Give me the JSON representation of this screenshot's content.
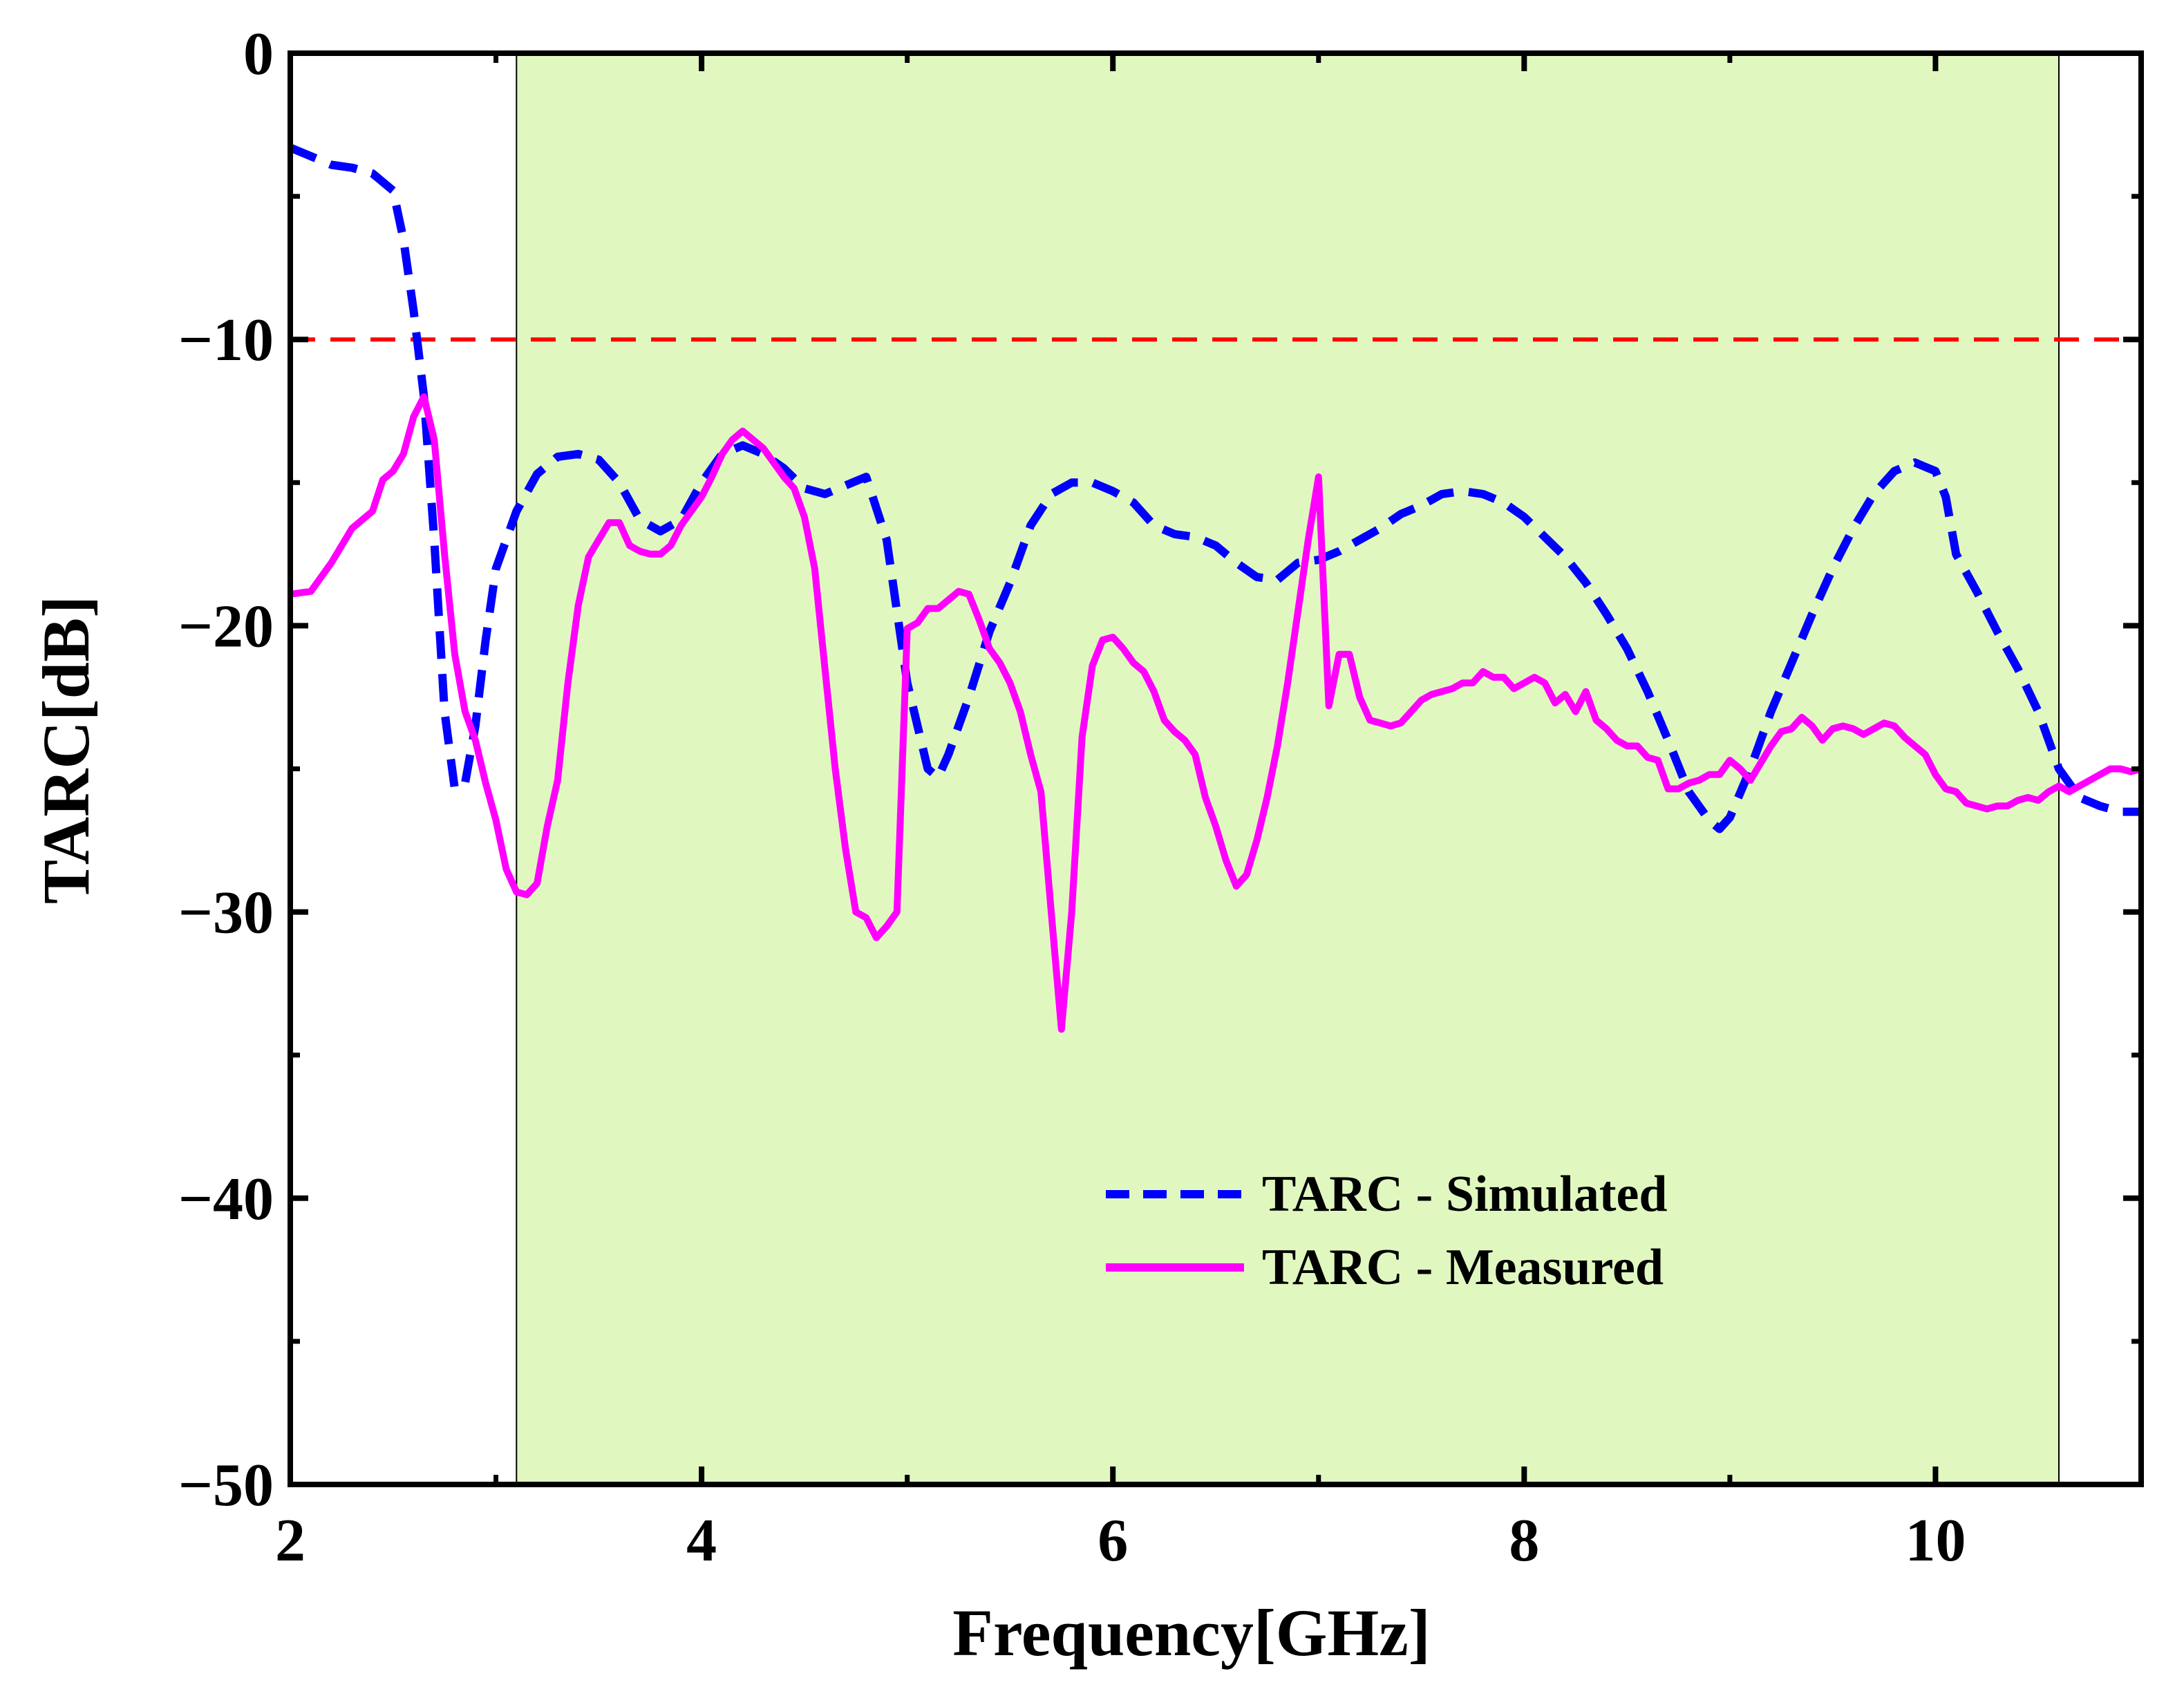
{
  "chart_data": {
    "type": "line",
    "title": "",
    "xlabel": "Frequency[GHz]",
    "ylabel": "TARC[dB]",
    "xlim": [
      2,
      11
    ],
    "ylim": [
      -50,
      0
    ],
    "x_ticks": [
      2,
      4,
      6,
      8,
      10
    ],
    "x_tick_labels": [
      "2",
      "4",
      "6",
      "8",
      "10"
    ],
    "y_ticks": [
      0,
      -10,
      -20,
      -30,
      -40,
      -50
    ],
    "y_tick_labels": [
      "0",
      "−10",
      "−20",
      "−30",
      "−40",
      "−50"
    ],
    "grid": false,
    "shaded_band": {
      "x_start": 3.1,
      "x_end": 10.6,
      "color": "#e0f8c0"
    },
    "reference_line": {
      "y": -10,
      "color": "#ff0000",
      "style": "dashed"
    },
    "legend_position": "lower-right",
    "series": [
      {
        "name": "TARC - Simulated",
        "color": "#0000ff",
        "style": "dashed",
        "x": [
          2.0,
          2.1,
          2.2,
          2.3,
          2.4,
          2.5,
          2.55,
          2.6,
          2.65,
          2.7,
          2.75,
          2.8,
          2.85,
          2.9,
          2.95,
          3.0,
          3.1,
          3.2,
          3.3,
          3.4,
          3.5,
          3.6,
          3.7,
          3.8,
          3.9,
          4.0,
          4.1,
          4.2,
          4.3,
          4.4,
          4.5,
          4.6,
          4.7,
          4.8,
          4.9,
          5.0,
          5.1,
          5.15,
          5.2,
          5.3,
          5.4,
          5.5,
          5.6,
          5.7,
          5.8,
          5.9,
          6.0,
          6.1,
          6.2,
          6.3,
          6.4,
          6.5,
          6.6,
          6.7,
          6.8,
          6.9,
          7.0,
          7.1,
          7.2,
          7.3,
          7.4,
          7.5,
          7.6,
          7.7,
          7.8,
          7.9,
          8.0,
          8.1,
          8.2,
          8.3,
          8.4,
          8.5,
          8.6,
          8.7,
          8.8,
          8.9,
          8.95,
          9.0,
          9.1,
          9.2,
          9.3,
          9.4,
          9.5,
          9.6,
          9.7,
          9.8,
          9.9,
          10.0,
          10.05,
          10.1,
          10.2,
          10.3,
          10.4,
          10.5,
          10.6,
          10.7,
          10.8,
          10.9,
          11.0
        ],
        "values": [
          -3.3,
          -3.6,
          -3.9,
          -4.0,
          -4.2,
          -4.8,
          -6.5,
          -9.0,
          -12.0,
          -17.0,
          -23.0,
          -25.7,
          -25.5,
          -23.5,
          -20.5,
          -18.0,
          -16.0,
          -14.7,
          -14.1,
          -14.0,
          -14.2,
          -15.0,
          -16.3,
          -16.7,
          -16.3,
          -15.0,
          -14.0,
          -13.7,
          -14.0,
          -14.5,
          -15.2,
          -15.4,
          -15.1,
          -14.8,
          -17.0,
          -22.0,
          -25.0,
          -25.3,
          -24.5,
          -22.5,
          -20.2,
          -18.5,
          -16.5,
          -15.4,
          -15.0,
          -15.0,
          -15.3,
          -15.7,
          -16.5,
          -16.8,
          -16.9,
          -17.2,
          -17.8,
          -18.3,
          -18.4,
          -17.8,
          -17.7,
          -17.4,
          -17.0,
          -16.6,
          -16.1,
          -15.8,
          -15.4,
          -15.3,
          -15.4,
          -15.7,
          -16.2,
          -16.9,
          -17.6,
          -18.5,
          -19.6,
          -20.8,
          -22.3,
          -24.0,
          -25.8,
          -26.8,
          -27.1,
          -26.7,
          -25.0,
          -23.0,
          -21.3,
          -19.6,
          -18.0,
          -16.6,
          -15.4,
          -14.6,
          -14.3,
          -14.6,
          -15.5,
          -17.5,
          -18.8,
          -20.2,
          -21.5,
          -23.0,
          -25.0,
          -26.0,
          -26.3,
          -26.5,
          -26.5
        ]
      },
      {
        "name": "TARC - Measured",
        "color": "#ff00ff",
        "style": "solid",
        "x": [
          2.0,
          2.1,
          2.2,
          2.3,
          2.4,
          2.45,
          2.5,
          2.55,
          2.6,
          2.65,
          2.7,
          2.75,
          2.8,
          2.85,
          2.9,
          2.95,
          3.0,
          3.05,
          3.1,
          3.15,
          3.2,
          3.25,
          3.3,
          3.35,
          3.4,
          3.45,
          3.5,
          3.55,
          3.6,
          3.65,
          3.7,
          3.75,
          3.8,
          3.85,
          3.9,
          3.95,
          4.0,
          4.05,
          4.1,
          4.15,
          4.2,
          4.25,
          4.3,
          4.35,
          4.4,
          4.45,
          4.5,
          4.55,
          4.6,
          4.65,
          4.7,
          4.75,
          4.8,
          4.85,
          4.9,
          4.95,
          5.0,
          5.05,
          5.1,
          5.15,
          5.2,
          5.25,
          5.3,
          5.35,
          5.4,
          5.45,
          5.5,
          5.55,
          5.6,
          5.65,
          5.7,
          5.75,
          5.8,
          5.85,
          5.9,
          5.95,
          6.0,
          6.05,
          6.1,
          6.15,
          6.2,
          6.25,
          6.3,
          6.35,
          6.4,
          6.45,
          6.5,
          6.55,
          6.6,
          6.65,
          6.7,
          6.75,
          6.8,
          6.85,
          6.9,
          6.95,
          7.0,
          7.05,
          7.1,
          7.15,
          7.2,
          7.25,
          7.3,
          7.35,
          7.4,
          7.45,
          7.5,
          7.55,
          7.6,
          7.65,
          7.7,
          7.75,
          7.8,
          7.85,
          7.9,
          7.95,
          8.0,
          8.05,
          8.1,
          8.15,
          8.2,
          8.25,
          8.3,
          8.35,
          8.4,
          8.45,
          8.5,
          8.55,
          8.6,
          8.65,
          8.7,
          8.75,
          8.8,
          8.85,
          8.9,
          8.95,
          9.0,
          9.05,
          9.1,
          9.15,
          9.2,
          9.25,
          9.3,
          9.35,
          9.4,
          9.45,
          9.5,
          9.55,
          9.6,
          9.65,
          9.7,
          9.75,
          9.8,
          9.85,
          9.9,
          9.95,
          10.0,
          10.05,
          10.1,
          10.15,
          10.2,
          10.25,
          10.3,
          10.35,
          10.4,
          10.45,
          10.5,
          10.55,
          10.6,
          10.65,
          10.7,
          10.75,
          10.8,
          10.85,
          10.9,
          10.95,
          11.0
        ],
        "values": [
          -18.9,
          -18.8,
          -17.8,
          -16.6,
          -16.0,
          -14.9,
          -14.6,
          -14.0,
          -12.7,
          -12.0,
          -13.5,
          -17.5,
          -21.0,
          -23.0,
          -24.0,
          -25.5,
          -26.8,
          -28.5,
          -29.3,
          -29.4,
          -29.0,
          -27.0,
          -25.4,
          -22.0,
          -19.3,
          -17.6,
          -17.0,
          -16.4,
          -16.4,
          -17.2,
          -17.4,
          -17.5,
          -17.5,
          -17.2,
          -16.5,
          -16.0,
          -15.5,
          -14.8,
          -14.0,
          -13.5,
          -13.2,
          -13.5,
          -13.8,
          -14.3,
          -14.8,
          -15.2,
          -16.2,
          -18.0,
          -21.5,
          -25.0,
          -27.8,
          -30.0,
          -30.2,
          -30.9,
          -30.5,
          -30.0,
          -20.1,
          -19.9,
          -19.4,
          -19.4,
          -19.1,
          -18.8,
          -18.9,
          -19.8,
          -20.8,
          -21.3,
          -22.0,
          -23.0,
          -24.5,
          -25.8,
          -30.0,
          -34.1,
          -30.0,
          -23.9,
          -21.4,
          -20.5,
          -20.4,
          -20.8,
          -21.3,
          -21.6,
          -22.3,
          -23.3,
          -23.7,
          -24.0,
          -24.5,
          -26.0,
          -27.0,
          -28.2,
          -29.1,
          -28.7,
          -27.5,
          -26.0,
          -24.2,
          -22.0,
          -19.5,
          -17.0,
          -14.8,
          -22.8,
          -21.0,
          -21.0,
          -22.5,
          -23.3,
          -23.4,
          -23.5,
          -23.4,
          -23.0,
          -22.6,
          -22.4,
          -22.3,
          -22.2,
          -22.0,
          -22.0,
          -21.6,
          -21.8,
          -21.8,
          -22.2,
          -22.0,
          -21.8,
          -22.0,
          -22.7,
          -22.4,
          -23.0,
          -22.3,
          -23.3,
          -23.6,
          -24.0,
          -24.2,
          -24.2,
          -24.6,
          -24.7,
          -25.7,
          -25.7,
          -25.5,
          -25.4,
          -25.2,
          -25.2,
          -24.7,
          -25.0,
          -25.4,
          -24.8,
          -24.2,
          -23.7,
          -23.6,
          -23.2,
          -23.5,
          -24.0,
          -23.6,
          -23.5,
          -23.6,
          -23.8,
          -23.6,
          -23.4,
          -23.5,
          -23.9,
          -24.2,
          -24.5,
          -25.2,
          -25.7,
          -25.8,
          -26.2,
          -26.3,
          -26.4,
          -26.3,
          -26.3,
          -26.1,
          -26.0,
          -26.1,
          -25.8,
          -25.6,
          -25.8,
          -25.6,
          -25.4,
          -25.2,
          -25.0,
          -25.0,
          -25.1,
          -25.0
        ]
      }
    ],
    "legend": [
      {
        "label": "TARC - Simulated",
        "series_index": 0
      },
      {
        "label": "TARC - Measured",
        "series_index": 1
      }
    ]
  }
}
